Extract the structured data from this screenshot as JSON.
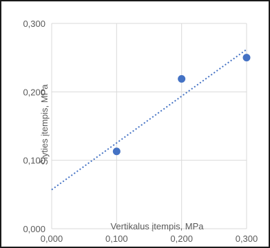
{
  "chart_data": {
    "type": "scatter",
    "title": "",
    "xlabel": "Vertikalus įtempis, MPa",
    "ylabel": "Šlyties įtempis, MPa",
    "xlim": [
      0,
      0.3
    ],
    "ylim": [
      0,
      0.3
    ],
    "x_ticks": [
      "0,000",
      "0,100",
      "0,200",
      "0,300"
    ],
    "y_ticks": [
      "0,000",
      "0,100",
      "0,200",
      "0,300"
    ],
    "grid": true,
    "legend": "none",
    "series": [
      {
        "x": [
          0.1,
          0.2,
          0.3
        ],
        "y": [
          0.113,
          0.219,
          0.25
        ]
      }
    ],
    "trendline": {
      "type": "linear",
      "x": [
        0,
        0.3
      ],
      "y": [
        0.057,
        0.262
      ],
      "style": "dotted"
    },
    "colors": {
      "marker": "#4472c4",
      "trendline": "#4472c4",
      "grid": "#d9d9d9",
      "text": "#595959"
    }
  }
}
